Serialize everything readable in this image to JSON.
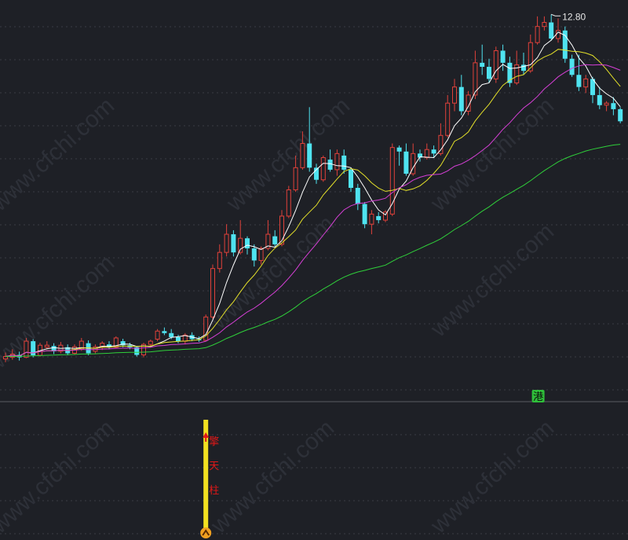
{
  "chart_data": {
    "type": "candlestick",
    "high_label": "12.80",
    "badge": "港",
    "signal_text": [
      "擎",
      "天",
      "柱"
    ],
    "watermark": "www.cfchi.com",
    "colors": {
      "background": "#1e2026",
      "up": "#e0413a",
      "down": "#4fe3f0",
      "ma5": "#ffffff",
      "ma10": "#e4e02a",
      "ma20": "#d63fd6",
      "ma60": "#2fcf3a",
      "signal": "#f2e020",
      "badge": "#2fbf3a"
    },
    "candles": [
      [
        4.26,
        4.32,
        4.42,
        4.18
      ],
      [
        4.3,
        4.38,
        4.5,
        4.24
      ],
      [
        4.36,
        4.3,
        4.44,
        4.22
      ],
      [
        4.3,
        4.7,
        4.78,
        4.28
      ],
      [
        4.7,
        4.35,
        4.75,
        4.3
      ],
      [
        4.35,
        4.6,
        4.66,
        4.32
      ],
      [
        4.55,
        4.6,
        4.7,
        4.5
      ],
      [
        4.58,
        4.45,
        4.65,
        4.38
      ],
      [
        4.45,
        4.6,
        4.68,
        4.4
      ],
      [
        4.55,
        4.4,
        4.62,
        4.35
      ],
      [
        4.4,
        4.56,
        4.62,
        4.36
      ],
      [
        4.5,
        4.7,
        4.78,
        4.46
      ],
      [
        4.65,
        4.4,
        4.72,
        4.35
      ],
      [
        4.45,
        4.56,
        4.62,
        4.4
      ],
      [
        4.56,
        4.65,
        4.7,
        4.48
      ],
      [
        4.62,
        4.55,
        4.7,
        4.5
      ],
      [
        4.55,
        4.78,
        4.82,
        4.52
      ],
      [
        4.7,
        4.6,
        4.76,
        4.55
      ],
      [
        4.6,
        4.55,
        4.66,
        4.5
      ],
      [
        4.55,
        4.36,
        4.58,
        4.32
      ],
      [
        4.36,
        4.62,
        4.66,
        4.3
      ],
      [
        4.62,
        4.7,
        4.74,
        4.58
      ],
      [
        4.75,
        4.95,
        5.0,
        4.7
      ],
      [
        4.95,
        4.9,
        5.04,
        4.85
      ],
      [
        4.9,
        4.8,
        5.0,
        4.75
      ],
      [
        4.8,
        4.7,
        4.86,
        4.65
      ],
      [
        4.7,
        4.85,
        4.9,
        4.62
      ],
      [
        4.85,
        4.75,
        4.92,
        4.7
      ],
      [
        4.75,
        4.72,
        4.82,
        4.68
      ],
      [
        4.72,
        5.3,
        5.36,
        4.7
      ],
      [
        5.3,
        6.5,
        6.6,
        5.25
      ],
      [
        6.5,
        6.9,
        7.1,
        6.4
      ],
      [
        6.9,
        7.35,
        7.6,
        6.8
      ],
      [
        7.35,
        6.9,
        7.45,
        6.8
      ],
      [
        6.9,
        7.25,
        7.7,
        6.85
      ],
      [
        7.25,
        7.0,
        7.3,
        6.85
      ],
      [
        7.0,
        6.7,
        7.1,
        6.55
      ],
      [
        6.7,
        7.0,
        7.05,
        6.6
      ],
      [
        7.0,
        7.35,
        7.7,
        6.95
      ],
      [
        7.3,
        7.1,
        7.45,
        7.05
      ],
      [
        7.1,
        7.8,
        7.95,
        7.05
      ],
      [
        7.8,
        8.45,
        8.55,
        7.75
      ],
      [
        8.45,
        9.0,
        9.3,
        8.4
      ],
      [
        9.0,
        9.6,
        9.9,
        8.95
      ],
      [
        9.6,
        9.0,
        10.5,
        8.9
      ],
      [
        9.0,
        8.7,
        9.1,
        8.6
      ],
      [
        8.7,
        9.25,
        9.3,
        8.65
      ],
      [
        9.2,
        8.95,
        9.45,
        8.9
      ],
      [
        8.95,
        9.35,
        9.45,
        8.8
      ],
      [
        9.3,
        8.95,
        9.45,
        8.85
      ],
      [
        8.95,
        8.5,
        9.0,
        8.4
      ],
      [
        8.5,
        8.1,
        8.6,
        7.95
      ],
      [
        8.1,
        7.6,
        8.15,
        7.5
      ],
      [
        7.6,
        7.85,
        7.95,
        7.35
      ],
      [
        7.8,
        7.7,
        7.9,
        7.62
      ],
      [
        7.7,
        7.9,
        7.95,
        7.65
      ],
      [
        7.85,
        9.5,
        9.6,
        7.8
      ],
      [
        9.5,
        9.4,
        9.55,
        9.05
      ],
      [
        9.4,
        8.85,
        9.6,
        8.8
      ],
      [
        8.85,
        9.35,
        9.6,
        8.8
      ],
      [
        9.35,
        9.25,
        9.45,
        9.15
      ],
      [
        9.25,
        9.45,
        9.6,
        9.2
      ],
      [
        9.45,
        9.35,
        9.55,
        9.25
      ],
      [
        9.35,
        9.8,
        10.1,
        9.3
      ],
      [
        9.8,
        10.6,
        10.8,
        9.75
      ],
      [
        10.6,
        11.0,
        11.2,
        10.4
      ],
      [
        11.0,
        10.4,
        11.3,
        10.3
      ],
      [
        10.4,
        10.8,
        10.9,
        10.3
      ],
      [
        10.8,
        11.6,
        11.9,
        10.7
      ],
      [
        11.6,
        11.5,
        12.05,
        11.3
      ],
      [
        11.5,
        11.2,
        11.7,
        11.1
      ],
      [
        11.2,
        11.9,
        12.0,
        11.1
      ],
      [
        11.9,
        11.6,
        12.05,
        11.4
      ],
      [
        11.6,
        11.1,
        11.75,
        11.0
      ],
      [
        11.1,
        11.55,
        11.9,
        11.05
      ],
      [
        11.55,
        11.4,
        11.85,
        11.3
      ],
      [
        11.4,
        12.1,
        12.3,
        11.35
      ],
      [
        12.1,
        12.5,
        12.75,
        12.05
      ],
      [
        12.5,
        12.6,
        12.75,
        12.4
      ],
      [
        12.6,
        12.2,
        12.8,
        12.15
      ],
      [
        12.2,
        12.4,
        12.7,
        12.1
      ],
      [
        12.4,
        11.7,
        12.5,
        11.6
      ],
      [
        11.7,
        11.3,
        11.8,
        11.25
      ],
      [
        11.3,
        11.0,
        11.8,
        10.9
      ],
      [
        11.0,
        11.2,
        11.3,
        10.85
      ],
      [
        11.2,
        10.8,
        11.25,
        10.6
      ],
      [
        10.8,
        10.55,
        11.0,
        10.45
      ],
      [
        10.55,
        10.6,
        10.65,
        10.4
      ],
      [
        10.6,
        10.45,
        10.75,
        10.3
      ],
      [
        10.45,
        10.15,
        10.5,
        10.1
      ]
    ],
    "ma_periods": [
      5,
      10,
      20,
      60
    ],
    "ylim": [
      4.0,
      13.0
    ],
    "signal_index": 29,
    "badge_index": 77
  }
}
